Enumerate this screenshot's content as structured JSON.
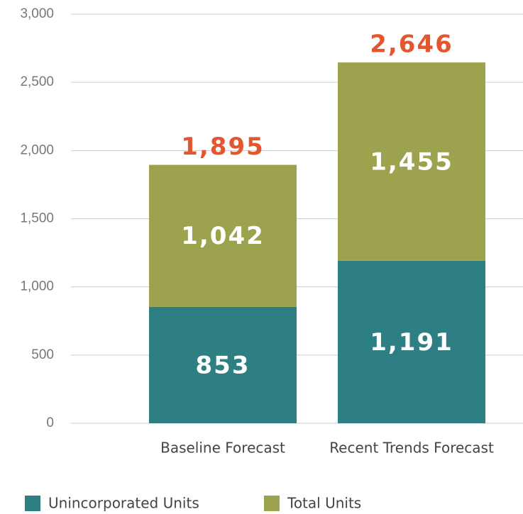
{
  "chart_data": {
    "type": "stacked_bar",
    "categories": [
      "Baseline Forecast",
      "Recent Trends Forecast"
    ],
    "series": [
      {
        "name": "Unincorporated Units",
        "color": "#2e7f84",
        "values": [
          853,
          1191
        ],
        "value_labels": [
          "853",
          "1,191"
        ]
      },
      {
        "name": "Total Units",
        "color": "#9da24f",
        "values": [
          1042,
          1455
        ],
        "value_labels": [
          "1,042",
          "1,455"
        ]
      }
    ],
    "totals": {
      "color": "#e4572e",
      "values": [
        1895,
        2646
      ],
      "value_labels": [
        "1,895",
        "2,646"
      ]
    },
    "ylim": [
      0,
      3000
    ],
    "yticks": [
      0,
      500,
      {
        "value": 1000,
        "label": "1,000"
      },
      {
        "value": 1500,
        "label": "1,500"
      },
      {
        "value": 2000,
        "label": "2,000"
      },
      {
        "value": 2500,
        "label": "2,500"
      },
      {
        "value": 3000,
        "label": "3,000"
      }
    ],
    "grid": true,
    "legend": "bottom-left"
  }
}
